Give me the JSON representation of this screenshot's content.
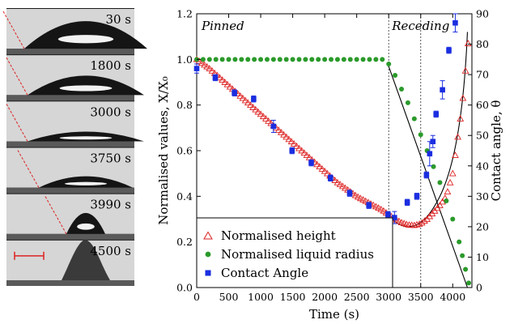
{
  "photos": {
    "labels": [
      "30 s",
      "1800 s",
      "3000 s",
      "3750 s",
      "3990 s",
      "4500 s"
    ],
    "scalebar_color": "#dd2222",
    "background_color": "#1a1a1a"
  },
  "chart_data": {
    "type": "scatter",
    "xlabel": "Time (s)",
    "ylabel": "Normalised values, X/X₀",
    "y2label": "Contact angle, θ",
    "xlim": [
      0,
      4300
    ],
    "ylim": [
      0.0,
      1.2
    ],
    "y2lim": [
      0,
      90
    ],
    "xticks": [
      "0",
      "500",
      "1000",
      "1500",
      "2000",
      "2500",
      "3000",
      "3500",
      "4000"
    ],
    "yticks": [
      "0.0",
      "0.2",
      "0.4",
      "0.6",
      "0.8",
      "1.0",
      "1.2"
    ],
    "y2ticks": [
      "0",
      "10",
      "20",
      "30",
      "40",
      "50",
      "60",
      "70",
      "80",
      "90"
    ],
    "regions": [
      {
        "label": "Pinned",
        "x_end": 3000
      },
      {
        "label": "Receding",
        "x_end": 3500
      }
    ],
    "vlines": [
      3000,
      3500
    ],
    "legend_position": "bottom-left",
    "series": [
      {
        "name": "Normalised height",
        "marker": "open-triangle",
        "color": "#dd2222",
        "x": [
          0,
          100,
          200,
          300,
          400,
          500,
          600,
          700,
          800,
          900,
          1000,
          1100,
          1200,
          1300,
          1400,
          1500,
          1600,
          1700,
          1800,
          1900,
          2000,
          2100,
          2200,
          2300,
          2400,
          2500,
          2600,
          2700,
          2800,
          2900,
          3000,
          3100,
          3200,
          3300,
          3400,
          3500,
          3600,
          3700,
          3800,
          3900,
          4000,
          4050,
          4100,
          4150,
          4200,
          4250
        ],
        "y": [
          1.0,
          0.98,
          0.96,
          0.935,
          0.91,
          0.885,
          0.86,
          0.835,
          0.81,
          0.785,
          0.76,
          0.735,
          0.71,
          0.685,
          0.66,
          0.635,
          0.61,
          0.585,
          0.56,
          0.535,
          0.51,
          0.485,
          0.46,
          0.44,
          0.42,
          0.4,
          0.385,
          0.37,
          0.355,
          0.34,
          0.32,
          0.3,
          0.285,
          0.275,
          0.273,
          0.28,
          0.3,
          0.33,
          0.36,
          0.4,
          0.5,
          0.6,
          0.7,
          0.8,
          0.95,
          1.1
        ]
      },
      {
        "name": "Normalised liquid radius",
        "marker": "filled-circle",
        "color": "#2a9a2a",
        "x": [
          0,
          100,
          200,
          300,
          400,
          500,
          600,
          700,
          800,
          900,
          1000,
          1100,
          1200,
          1300,
          1400,
          1500,
          1600,
          1700,
          1800,
          1900,
          2000,
          2100,
          2200,
          2300,
          2400,
          2500,
          2600,
          2700,
          2800,
          2900,
          3000,
          3100,
          3200,
          3300,
          3400,
          3500,
          3600,
          3700,
          3800,
          3900,
          4000,
          4100,
          4150,
          4200,
          4250
        ],
        "y": [
          1.0,
          1.0,
          1.0,
          1.0,
          1.0,
          1.0,
          1.0,
          1.0,
          1.0,
          1.0,
          1.0,
          1.0,
          1.0,
          1.0,
          1.0,
          1.0,
          1.0,
          1.0,
          1.0,
          1.0,
          1.0,
          1.0,
          1.0,
          1.0,
          1.0,
          1.0,
          1.0,
          1.0,
          1.0,
          1.0,
          0.98,
          0.93,
          0.87,
          0.81,
          0.74,
          0.67,
          0.6,
          0.53,
          0.46,
          0.38,
          0.3,
          0.2,
          0.14,
          0.08,
          0.02
        ]
      },
      {
        "name": "Contact Angle",
        "marker": "filled-square",
        "color": "#1a2ee0",
        "axis": "right",
        "x": [
          0,
          290,
          590,
          890,
          1200,
          1490,
          1790,
          2090,
          2390,
          2690,
          2990,
          3090,
          3290,
          3440,
          3590,
          3640,
          3690,
          3740,
          3840,
          3940,
          4040
        ],
        "y": [
          72,
          69,
          64,
          62,
          53,
          45,
          41,
          36,
          31,
          27,
          24,
          23,
          28,
          30,
          37,
          44,
          48,
          57,
          65,
          78,
          87
        ],
        "err": [
          1.5,
          1,
          1,
          1,
          2,
          1,
          1,
          1,
          1,
          1,
          1,
          2,
          1,
          1,
          1,
          4,
          2,
          1,
          3,
          1,
          3
        ]
      }
    ]
  }
}
